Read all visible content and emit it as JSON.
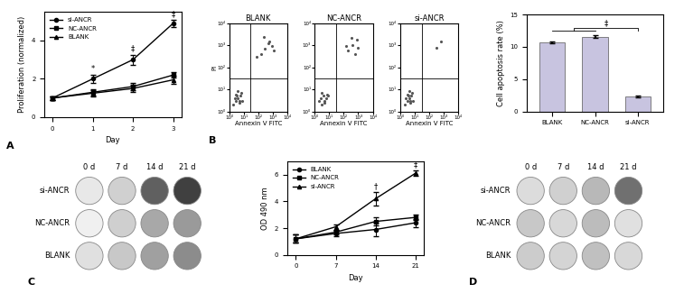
{
  "chart_data": [
    {
      "type": "line",
      "panel": "A",
      "xlabel": "Day",
      "ylabel": "Proliferation (normalized)",
      "x": [
        0,
        1,
        2,
        3
      ],
      "xlim": [
        -0.2,
        3.2
      ],
      "xticks": [
        0,
        1,
        2,
        3
      ],
      "ylim": [
        0,
        5.5
      ],
      "yticks": [
        0,
        2,
        4
      ],
      "legend": "upper left",
      "series": [
        {
          "name": "si-ANCR",
          "color": "#000000",
          "marker": "circle",
          "values": [
            1.0,
            2.0,
            3.0,
            4.9
          ],
          "errors": [
            0.1,
            0.2,
            0.25,
            0.2
          ]
        },
        {
          "name": "NC-ANCR",
          "color": "#000000",
          "marker": "square",
          "values": [
            1.0,
            1.3,
            1.6,
            2.2
          ],
          "errors": [
            0.1,
            0.15,
            0.2,
            0.15
          ]
        },
        {
          "name": "BLANK",
          "color": "#000000",
          "marker": "triangle",
          "values": [
            1.0,
            1.25,
            1.5,
            1.95
          ],
          "errors": [
            0.1,
            0.15,
            0.2,
            0.2
          ]
        }
      ],
      "annotations": [
        {
          "text": "*",
          "x": 1,
          "y": 2.3
        },
        {
          "text": "‡",
          "x": 2,
          "y": 3.35
        },
        {
          "text": "‡",
          "x": 3,
          "y": 5.15
        }
      ]
    },
    {
      "type": "scatter",
      "panel": "B",
      "title": "BLANK",
      "xlabel": "Annexin V FITC",
      "ylabel": "PI",
      "log": true,
      "xlim": [
        1,
        10000
      ],
      "ylim": [
        1,
        10000
      ],
      "xticks": [
        {
          "value": 1,
          "label": "10⁰"
        },
        {
          "value": 10,
          "label": "10¹"
        },
        {
          "value": 100,
          "label": "10²"
        },
        {
          "value": 1000,
          "label": "10³"
        },
        {
          "value": 10000,
          "label": "10⁴"
        }
      ],
      "yticks": [
        {
          "value": 1,
          "label": "10⁰"
        },
        {
          "value": 10,
          "label": "10¹"
        },
        {
          "value": 100,
          "label": "10²"
        },
        {
          "value": 1000,
          "label": "10³"
        },
        {
          "value": 10000,
          "label": "10⁴"
        }
      ],
      "gates": {
        "x": 30,
        "y": 30
      },
      "color": "#555555",
      "x": [
        2,
        3,
        4,
        5,
        6,
        3,
        8,
        4,
        2.5,
        7,
        5,
        3.5,
        150,
        300,
        600,
        900,
        250,
        500,
        1200,
        80
      ],
      "y": [
        2,
        3,
        4,
        2.5,
        5,
        6,
        3,
        8,
        4,
        7,
        3,
        5,
        400,
        700,
        1500,
        900,
        2500,
        1200,
        600,
        300
      ]
    },
    {
      "type": "scatter",
      "title": "NC-ANCR",
      "xlabel": "Annexin V FITC",
      "log": true,
      "xlim": [
        1,
        10000
      ],
      "ylim": [
        1,
        10000
      ],
      "xticks": [
        {
          "value": 1,
          "label": "10⁰"
        },
        {
          "value": 10,
          "label": "10¹"
        },
        {
          "value": 100,
          "label": "10²"
        },
        {
          "value": 1000,
          "label": "10³"
        },
        {
          "value": 10000,
          "label": "10⁴"
        }
      ],
      "yticks": [
        {
          "value": 1,
          "label": "10⁰"
        },
        {
          "value": 10,
          "label": "10¹"
        },
        {
          "value": 100,
          "label": "10²"
        },
        {
          "value": 1000,
          "label": "10³"
        },
        {
          "value": 10000,
          "label": "10⁴"
        }
      ],
      "gates": {
        "x": 30,
        "y": 30
      },
      "color": "#555555",
      "x": [
        2,
        3,
        4,
        6,
        3,
        5,
        8,
        2.5,
        4.5,
        7,
        200,
        400,
        800,
        1000,
        350,
        600,
        150
      ],
      "y": [
        3,
        2,
        5,
        4,
        7,
        3,
        5,
        4,
        2.5,
        6,
        600,
        1000,
        1800,
        800,
        2200,
        400,
        900
      ]
    },
    {
      "type": "scatter",
      "title": "si-ANCR",
      "xlabel": "Annexin V FITC",
      "log": true,
      "xlim": [
        1,
        10000
      ],
      "ylim": [
        1,
        10000
      ],
      "xticks": [
        {
          "value": 1,
          "label": "10⁰"
        },
        {
          "value": 10,
          "label": "10¹"
        },
        {
          "value": 100,
          "label": "10²"
        },
        {
          "value": 1000,
          "label": "10³"
        },
        {
          "value": 10000,
          "label": "10⁴"
        }
      ],
      "yticks": [
        {
          "value": 1,
          "label": "10⁰"
        },
        {
          "value": 10,
          "label": "10¹"
        },
        {
          "value": 100,
          "label": "10²"
        },
        {
          "value": 1000,
          "label": "10³"
        },
        {
          "value": 10000,
          "label": "10⁴"
        }
      ],
      "gates": {
        "x": 30,
        "y": 30
      },
      "color": "#555555",
      "x": [
        2,
        3,
        4,
        5,
        6,
        3,
        8,
        4,
        2.5,
        7,
        5,
        3.5,
        300,
        600
      ],
      "y": [
        2,
        3,
        4,
        2.5,
        5,
        6,
        3,
        8,
        4,
        7,
        3,
        5,
        800,
        1500
      ]
    },
    {
      "type": "bar",
      "ylabel": "Cell apoptosis rate (%)",
      "categories": [
        "BLANK",
        "NC-ANCR",
        "si-ANCR"
      ],
      "values": [
        10.7,
        11.6,
        2.3
      ],
      "errors": [
        0.15,
        0.15,
        0.1
      ],
      "color": "#c8c4e0",
      "ylim": [
        0,
        15
      ],
      "yticks": [
        0,
        5,
        10,
        15
      ],
      "comparison": {
        "text": "‡",
        "groups": [
          [
            "BLANK",
            "NC-ANCR"
          ],
          [
            "si-ANCR"
          ]
        ],
        "y": 13
      }
    },
    {
      "type": "wells",
      "panel": "C",
      "columns": [
        "0 d",
        "7 d",
        "14 d",
        "21 d"
      ],
      "rows": [
        "si-ANCR",
        "NC-ANCR",
        "BLANK"
      ],
      "colors": [
        [
          "#e8e8e8",
          "#d0d0d0",
          "#606060",
          "#404040"
        ],
        [
          "#f0f0f0",
          "#cfcfcf",
          "#a8a8a8",
          "#9a9a9a"
        ],
        [
          "#e0e0e0",
          "#c8c8c8",
          "#a0a0a0",
          "#8c8c8c"
        ]
      ]
    },
    {
      "type": "line",
      "xlabel": "Day",
      "ylabel": "OD 490 nm",
      "x": [
        0,
        7,
        14,
        21
      ],
      "xlim": [
        -1.5,
        22.5
      ],
      "xticks": [
        0,
        7,
        14,
        21
      ],
      "ylim": [
        0,
        7
      ],
      "yticks": [
        0,
        2,
        4,
        6
      ],
      "legend": "upper left",
      "series": [
        {
          "name": "BLANK",
          "color": "#000000",
          "marker": "circle",
          "values": [
            1.2,
            1.6,
            1.9,
            2.4
          ],
          "errors": [
            0.3,
            0.2,
            0.5,
            0.3
          ]
        },
        {
          "name": "NC-ANCR",
          "color": "#000000",
          "marker": "square",
          "values": [
            1.2,
            1.7,
            2.5,
            2.8
          ],
          "errors": [
            0.3,
            0.2,
            0.3,
            0.2
          ]
        },
        {
          "name": "si-ANCR",
          "color": "#000000",
          "marker": "triangle",
          "values": [
            1.2,
            2.1,
            4.2,
            6.1
          ],
          "errors": [
            0.3,
            0.2,
            0.5,
            0.2
          ]
        }
      ],
      "annotations": [
        {
          "text": "†",
          "x": 14,
          "y": 4.8
        },
        {
          "text": "‡",
          "x": 21,
          "y": 6.4
        }
      ]
    },
    {
      "type": "wells",
      "panel": "D",
      "columns": [
        "0 d",
        "7 d",
        "14 d",
        "21 d"
      ],
      "rows": [
        "si-ANCR",
        "NC-ANCR",
        "BLANK"
      ],
      "colors": [
        [
          "#dcdcdc",
          "#d0d0d0",
          "#b8b8b8",
          "#707070"
        ],
        [
          "#c8c8c8",
          "#d8d8d8",
          "#bcbcbc",
          "#e0e0e0"
        ],
        [
          "#cccccc",
          "#d4d4d4",
          "#c0c0c0",
          "#d8d8d8"
        ]
      ]
    }
  ]
}
